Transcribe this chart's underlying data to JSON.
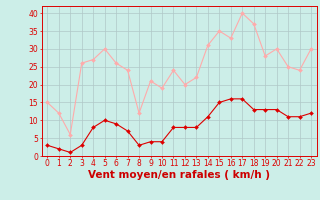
{
  "x": [
    0,
    1,
    2,
    3,
    4,
    5,
    6,
    7,
    8,
    9,
    10,
    11,
    12,
    13,
    14,
    15,
    16,
    17,
    18,
    19,
    20,
    21,
    22,
    23
  ],
  "wind_avg": [
    3,
    2,
    1,
    3,
    8,
    10,
    9,
    7,
    3,
    4,
    4,
    8,
    8,
    8,
    11,
    15,
    16,
    16,
    13,
    13,
    13,
    11,
    11,
    12
  ],
  "wind_gust": [
    15,
    12,
    6,
    26,
    27,
    30,
    26,
    24,
    12,
    21,
    19,
    24,
    20,
    22,
    31,
    35,
    33,
    40,
    37,
    28,
    30,
    25,
    24,
    30
  ],
  "bg_color": "#cceee8",
  "grid_color": "#b0c8c8",
  "avg_color": "#dd0000",
  "gust_color": "#ffaaaa",
  "xlabel": "Vent moyen/en rafales ( km/h )",
  "xlabel_color": "#cc0000",
  "ylim": [
    0,
    42
  ],
  "yticks": [
    0,
    5,
    10,
    15,
    20,
    25,
    30,
    35,
    40
  ],
  "xticks": [
    0,
    1,
    2,
    3,
    4,
    5,
    6,
    7,
    8,
    9,
    10,
    11,
    12,
    13,
    14,
    15,
    16,
    17,
    18,
    19,
    20,
    21,
    22,
    23
  ],
  "tick_fontsize": 5.5,
  "xlabel_fontsize": 7.5
}
